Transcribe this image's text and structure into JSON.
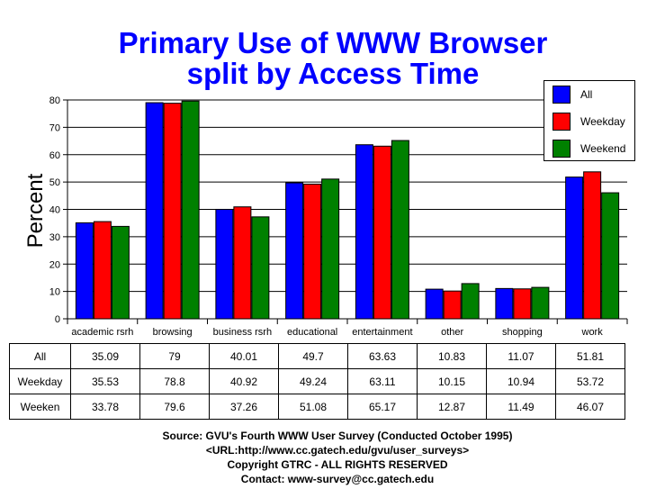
{
  "chart_data": {
    "type": "bar",
    "title": "Primary Use of WWW Browser",
    "subtitle": "split by Access Time",
    "ylabel": "Percent",
    "xlabel": "",
    "ylim": [
      0,
      80
    ],
    "yticks": [
      0,
      10,
      20,
      30,
      40,
      50,
      60,
      70,
      80
    ],
    "grid": true,
    "legend_position": "top-right",
    "categories": [
      "academic rsrh",
      "browsing",
      "business rsrh",
      "educational",
      "entertainment",
      "other",
      "shopping",
      "work"
    ],
    "series": [
      {
        "name": "All",
        "color": "#0000ff",
        "values": [
          35.09,
          79,
          40.01,
          49.7,
          63.63,
          10.83,
          11.07,
          51.81
        ]
      },
      {
        "name": "Weekday",
        "color": "#ff0000",
        "values": [
          35.53,
          78.8,
          40.92,
          49.24,
          63.11,
          10.15,
          10.94,
          53.72
        ]
      },
      {
        "name": "Weekend",
        "color": "#008000",
        "values": [
          33.78,
          79.6,
          37.26,
          51.08,
          65.17,
          12.87,
          11.49,
          46.07
        ]
      }
    ]
  },
  "table": {
    "rows": [
      {
        "label": "All",
        "values": [
          "35.09",
          "79",
          "40.01",
          "49.7",
          "63.63",
          "10.83",
          "11.07",
          "51.81"
        ]
      },
      {
        "label": "Weekday",
        "values": [
          "35.53",
          "78.8",
          "40.92",
          "49.24",
          "63.11",
          "10.15",
          "10.94",
          "53.72"
        ]
      },
      {
        "label": "Weeken",
        "values": [
          "33.78",
          "79.6",
          "37.26",
          "51.08",
          "65.17",
          "12.87",
          "11.49",
          "46.07"
        ]
      }
    ]
  },
  "footer": {
    "source": "Source: GVU's Fourth WWW User Survey  (Conducted October 1995)",
    "url": "<URL:http://www.cc.gatech.edu/gvu/user_surveys>",
    "copyright": "Copyright GTRC -  ALL RIGHTS RESERVED",
    "contact": "Contact: www-survey@cc.gatech.edu"
  }
}
